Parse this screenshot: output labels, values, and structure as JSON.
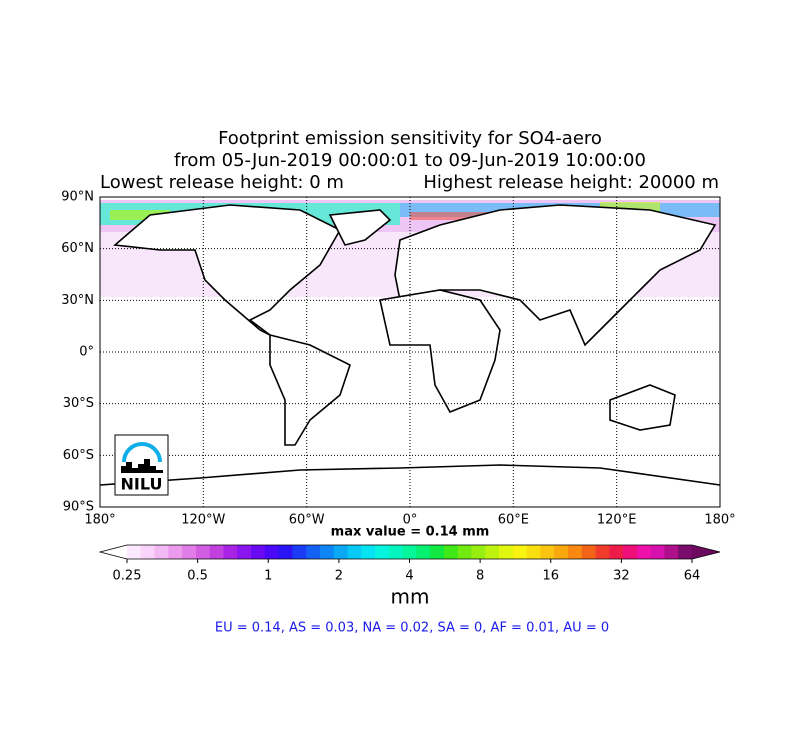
{
  "title": {
    "line1": "Footprint emission sensitivity for SO4-aero",
    "line2": "from 05-Jun-2019 00:00:01 to 09-Jun-2019 10:00:00",
    "lowest": "Lowest release height: 0 m",
    "highest": "Highest release height: 20000 m"
  },
  "map": {
    "xlim": [
      -180,
      180
    ],
    "ylim": [
      -90,
      90
    ],
    "lat_ticks": [
      {
        "value": 90,
        "label": "90°N"
      },
      {
        "value": 60,
        "label": "60°N"
      },
      {
        "value": 30,
        "label": "30°N"
      },
      {
        "value": 0,
        "label": "0°"
      },
      {
        "value": -30,
        "label": "30°S"
      },
      {
        "value": -60,
        "label": "60°S"
      },
      {
        "value": -90,
        "label": "90°S"
      }
    ],
    "lon_ticks": [
      {
        "value": -180,
        "label": "180°"
      },
      {
        "value": -120,
        "label": "120°W"
      },
      {
        "value": -60,
        "label": "60°W"
      },
      {
        "value": 0,
        "label": "0°"
      },
      {
        "value": 60,
        "label": "60°E"
      },
      {
        "value": 120,
        "label": "120°E"
      },
      {
        "value": 180,
        "label": "180°"
      }
    ],
    "grid": true,
    "logo": "NILU",
    "max_value": "max value = 0.14 mm"
  },
  "colorbar": {
    "scale": "log",
    "lim": [
      0.25,
      64
    ],
    "ticks": [
      0.25,
      0.5,
      1,
      2,
      4,
      8,
      16,
      32,
      64
    ],
    "label": "mm",
    "under_color": "#ffffff",
    "over_color": "#6a0a5e",
    "colors": [
      "#fde9fd",
      "#f9d3f9",
      "#f2b8f3",
      "#eb9bee",
      "#e07de8",
      "#d35ee3",
      "#c23fe0",
      "#a823e6",
      "#8c14ef",
      "#6a0af5",
      "#4a08f7",
      "#2a14f5",
      "#1b3cf5",
      "#1460f5",
      "#0e86f5",
      "#0aa8f5",
      "#08c8f5",
      "#06e4f2",
      "#05f5e0",
      "#05f5c0",
      "#05f59a",
      "#08f070",
      "#10ea40",
      "#40e818",
      "#70ea10",
      "#98ee10",
      "#bef310",
      "#e0f710",
      "#f8f410",
      "#fadf10",
      "#fac410",
      "#faa810",
      "#f88810",
      "#f46418",
      "#f03c28",
      "#f01c48",
      "#f0107a",
      "#ee10a8",
      "#d810b0",
      "#b0108a",
      "#7a0c6e"
    ]
  },
  "footer": "EU = 0.14,  AS = 0.03,  NA = 0.02,  SA = 0,  AF = 0.01,  AU = 0"
}
